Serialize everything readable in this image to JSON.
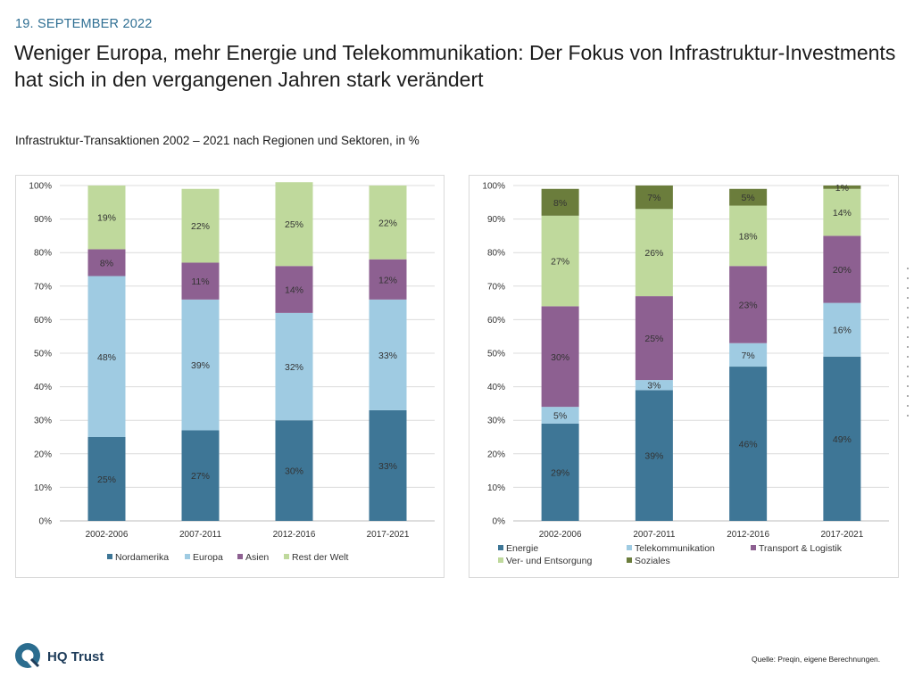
{
  "header": {
    "date": "19. SEPTEMBER 2022",
    "title": "Weniger Europa, mehr Energie und Telekommunikation: Der Fokus von Infrastruktur-Investments hat sich in den vergangenen Jahren stark verändert",
    "subtitle": "Infrastruktur-Transaktionen 2002 – 2021 nach Regionen und Sektoren, in %"
  },
  "footer": {
    "logo_text": "HQ Trust",
    "source": "Quelle: Preqin, eigene Berechnungen."
  },
  "chart_data": [
    {
      "type": "bar",
      "stacked": true,
      "title": "",
      "xlabel": "",
      "ylabel": "",
      "ylim": [
        0,
        100
      ],
      "yticks": [
        "0%",
        "10%",
        "20%",
        "30%",
        "40%",
        "50%",
        "60%",
        "70%",
        "80%",
        "90%",
        "100%"
      ],
      "grid": true,
      "legend_position": "bottom",
      "categories": [
        "2002-2006",
        "2007-2011",
        "2012-2016",
        "2017-2021"
      ],
      "series": [
        {
          "name": "Nordamerika",
          "color": "#3e7696",
          "values": [
            25,
            27,
            30,
            33
          ],
          "labels": [
            "25%",
            "27%",
            "30%",
            "33%"
          ]
        },
        {
          "name": "Europa",
          "color": "#9fcbe2",
          "values": [
            48,
            39,
            32,
            33
          ],
          "labels": [
            "48%",
            "39%",
            "32%",
            "33%"
          ]
        },
        {
          "name": "Asien",
          "color": "#8d6091",
          "values": [
            8,
            11,
            14,
            12
          ],
          "labels": [
            "8%",
            "11%",
            "14%",
            "12%"
          ]
        },
        {
          "name": "Rest der Welt",
          "color": "#bfd99c",
          "values": [
            19,
            22,
            25,
            22
          ],
          "labels": [
            "19%",
            "22%",
            "25%",
            "22%"
          ]
        }
      ]
    },
    {
      "type": "bar",
      "stacked": true,
      "title": "",
      "xlabel": "",
      "ylabel": "",
      "ylim": [
        0,
        100
      ],
      "yticks": [
        "0%",
        "10%",
        "20%",
        "30%",
        "40%",
        "50%",
        "60%",
        "70%",
        "80%",
        "90%",
        "100%"
      ],
      "grid": true,
      "legend_position": "bottom",
      "categories": [
        "2002-2006",
        "2007-2011",
        "2012-2016",
        "2017-2021"
      ],
      "series": [
        {
          "name": "Energie",
          "color": "#3e7696",
          "values": [
            29,
            39,
            46,
            49
          ],
          "labels": [
            "29%",
            "39%",
            "46%",
            "49%"
          ]
        },
        {
          "name": "Telekommunikation",
          "color": "#9fcbe2",
          "values": [
            5,
            3,
            7,
            16
          ],
          "labels": [
            "5%",
            "3%",
            "7%",
            "16%"
          ]
        },
        {
          "name": "Transport & Logistik",
          "color": "#8d6091",
          "values": [
            30,
            25,
            23,
            20
          ],
          "labels": [
            "30%",
            "25%",
            "23%",
            "20%"
          ]
        },
        {
          "name": "Ver- und Entsorgung",
          "color": "#bfd99c",
          "values": [
            27,
            26,
            18,
            14
          ],
          "labels": [
            "27%",
            "26%",
            "18%",
            "14%"
          ]
        },
        {
          "name": "Soziales",
          "color": "#6b7d3c",
          "values": [
            8,
            7,
            5,
            1
          ],
          "labels": [
            "8%",
            "7%",
            "5%",
            "1%"
          ]
        }
      ]
    }
  ]
}
